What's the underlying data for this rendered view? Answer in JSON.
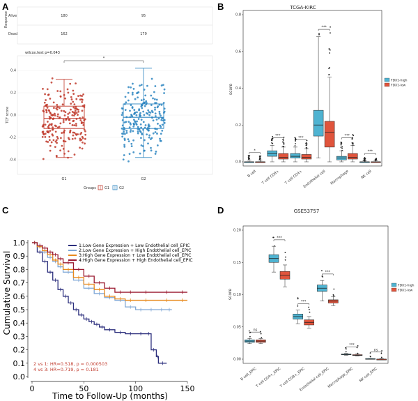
{
  "colors": {
    "g1": "#c0392b",
    "g2": "#2e86c1",
    "high": "#4fb3d1",
    "low": "#e0543c",
    "c1": "#2c2f7d",
    "c2": "#7fa7d6",
    "c3": "#e8891c",
    "c4": "#9b1b30"
  },
  "panels": {
    "A": "A",
    "B": "B",
    "C": "C",
    "D": "D"
  },
  "chart_data": [
    {
      "id": "A",
      "type": "box",
      "table": {
        "row_labels": [
          "Alive",
          "Dead"
        ],
        "col_values": [
          [
            "180",
            "95"
          ],
          [
            "162",
            "179"
          ]
        ],
        "y_title": "Response"
      },
      "stat": "wilcox.test p=0.043",
      "sig": "*",
      "ylabel": "TCF score",
      "y_ticks": [
        "0.4",
        "0.2",
        "0.0",
        "-0.2",
        "-0.4"
      ],
      "categories": [
        "G1",
        "G2"
      ],
      "legend_title": "Groups",
      "legend_labels": [
        "G1",
        "G2"
      ],
      "boxes": [
        {
          "name": "G1",
          "q1": -0.12,
          "median": -0.03,
          "q3": 0.08,
          "whisker_low": -0.38,
          "whisker_high": 0.32
        },
        {
          "name": "G2",
          "q1": -0.12,
          "median": -0.02,
          "q3": 0.1,
          "whisker_low": -0.38,
          "whisker_high": 0.42
        }
      ],
      "ylim": [
        -0.5,
        0.5
      ]
    },
    {
      "id": "B",
      "type": "box",
      "title": "TCGA-KIRC",
      "ylabel": "score",
      "ylim": [
        0,
        0.8
      ],
      "y_ticks": [
        "0.0",
        "0.2",
        "0.4",
        "0.6",
        "0.8"
      ],
      "categories": [
        "B cell",
        "T cell CD8+",
        "T cell CD4+",
        "Endothelial cell",
        "Macrophage",
        "NK cell"
      ],
      "legend": [
        "FDX1-high",
        "FDX1-low"
      ],
      "sig": [
        "*",
        "***",
        "***",
        "***",
        "***",
        "***"
      ],
      "series": [
        {
          "name": "FDX1-high",
          "boxes": [
            {
              "q1": 0.0,
              "median": 0.0,
              "q3": 0.0,
              "lo": 0.0,
              "hi": 0.01
            },
            {
              "q1": 0.03,
              "median": 0.045,
              "q3": 0.06,
              "lo": 0.0,
              "hi": 0.09
            },
            {
              "q1": 0.02,
              "median": 0.03,
              "q3": 0.045,
              "lo": 0.0,
              "hi": 0.08
            },
            {
              "q1": 0.14,
              "median": 0.2,
              "q3": 0.28,
              "lo": 0.02,
              "hi": 0.68
            },
            {
              "q1": 0.01,
              "median": 0.02,
              "q3": 0.03,
              "lo": 0.0,
              "hi": 0.06
            },
            {
              "q1": 0.0,
              "median": 0.0,
              "q3": 0.0,
              "lo": 0.0,
              "hi": 0.005
            }
          ]
        },
        {
          "name": "FDX1-low",
          "boxes": [
            {
              "q1": 0.0,
              "median": 0.0,
              "q3": 0.0,
              "lo": 0.0,
              "hi": 0.01
            },
            {
              "q1": 0.015,
              "median": 0.025,
              "q3": 0.045,
              "lo": 0.0,
              "hi": 0.08
            },
            {
              "q1": 0.015,
              "median": 0.025,
              "q3": 0.04,
              "lo": 0.0,
              "hi": 0.07
            },
            {
              "q1": 0.08,
              "median": 0.16,
              "q3": 0.22,
              "lo": 0.0,
              "hi": 0.46
            },
            {
              "q1": 0.015,
              "median": 0.025,
              "q3": 0.045,
              "lo": 0.0,
              "hi": 0.09
            },
            {
              "q1": 0.0,
              "median": 0.0,
              "q3": 0.0,
              "lo": 0.0,
              "hi": 0.005
            }
          ]
        }
      ]
    },
    {
      "id": "C",
      "type": "line",
      "xlabel": "Time to Follow-Up (months)",
      "ylabel": "Cumulative Survival",
      "xlim": [
        0,
        150
      ],
      "ylim": [
        0,
        1.0
      ],
      "x_ticks": [
        0,
        50,
        100,
        150
      ],
      "y_ticks": [
        "0.0",
        "0.1",
        "0.2",
        "0.3",
        "0.4",
        "0.5",
        "0.6",
        "0.7",
        "0.8",
        "0.9",
        "1.0"
      ],
      "legend": [
        "1:Low Gene Expression + Low Endothelial cell_EPIC",
        "2:Low Gene Expression + High Endothelial cell_EPIC",
        "3:High Gene Expression + Low Endothelial cell_EPIC",
        "4:High Gene Expression + High Endothelial cell_EPIC"
      ],
      "stats": [
        "2 vs 1: HR=0.518, p = 0.000503",
        "4 vs 3: HR=0.719, p = 0.181"
      ],
      "series": [
        {
          "x": [
            0,
            5,
            10,
            15,
            20,
            25,
            30,
            35,
            40,
            45,
            50,
            55,
            60,
            65,
            70,
            80,
            90,
            100,
            110,
            115,
            120,
            122,
            130
          ],
          "y": [
            1.0,
            0.93,
            0.86,
            0.78,
            0.72,
            0.65,
            0.6,
            0.55,
            0.5,
            0.46,
            0.43,
            0.41,
            0.39,
            0.37,
            0.35,
            0.33,
            0.32,
            0.32,
            0.32,
            0.2,
            0.15,
            0.1,
            0.1
          ]
        },
        {
          "x": [
            0,
            5,
            10,
            15,
            20,
            25,
            30,
            40,
            50,
            60,
            70,
            80,
            90,
            100,
            110,
            120,
            130,
            135
          ],
          "y": [
            1.0,
            0.97,
            0.93,
            0.89,
            0.86,
            0.82,
            0.78,
            0.72,
            0.66,
            0.62,
            0.59,
            0.57,
            0.52,
            0.5,
            0.5,
            0.5,
            0.5,
            0.5
          ]
        },
        {
          "x": [
            0,
            5,
            10,
            15,
            20,
            25,
            30,
            40,
            50,
            60,
            70,
            80,
            90,
            100,
            120,
            140,
            150
          ],
          "y": [
            1.0,
            0.97,
            0.94,
            0.91,
            0.87,
            0.84,
            0.8,
            0.74,
            0.69,
            0.65,
            0.6,
            0.58,
            0.57,
            0.57,
            0.57,
            0.57,
            0.57
          ]
        },
        {
          "x": [
            0,
            5,
            10,
            15,
            20,
            25,
            30,
            40,
            50,
            60,
            70,
            80,
            90,
            100,
            120,
            140,
            150
          ],
          "y": [
            1.0,
            0.98,
            0.96,
            0.93,
            0.91,
            0.88,
            0.85,
            0.8,
            0.75,
            0.7,
            0.66,
            0.63,
            0.63,
            0.63,
            0.63,
            0.63,
            0.63
          ]
        }
      ]
    },
    {
      "id": "D",
      "type": "box",
      "title": "GSE53757",
      "ylabel": "score",
      "ylim": [
        0,
        0.2
      ],
      "y_ticks": [
        "0.00",
        "0.05",
        "0.10",
        "0.15",
        "0.20"
      ],
      "categories": [
        "B cell_EPIC",
        "T cell CD4+_EPIC",
        "T cell CD8+_EPIC",
        "Endothelial cell_EPIC",
        "Macrophage_EPIC",
        "NK cell_EPIC"
      ],
      "legend": [
        "FDX1-high",
        "FDX1-low"
      ],
      "sig": [
        "ns",
        "***",
        "***",
        "***",
        "***",
        "ns"
      ],
      "series": [
        {
          "name": "FDX1-high",
          "boxes": [
            {
              "q1": 0.026,
              "median": 0.028,
              "q3": 0.03,
              "lo": 0.024,
              "hi": 0.032
            },
            {
              "q1": 0.15,
              "median": 0.156,
              "q3": 0.162,
              "lo": 0.135,
              "hi": 0.175
            },
            {
              "q1": 0.062,
              "median": 0.066,
              "q3": 0.07,
              "lo": 0.055,
              "hi": 0.076
            },
            {
              "q1": 0.105,
              "median": 0.11,
              "q3": 0.115,
              "lo": 0.09,
              "hi": 0.122
            },
            {
              "q1": 0.007,
              "median": 0.007,
              "q3": 0.008,
              "lo": 0.006,
              "hi": 0.009
            },
            {
              "q1": 0.0,
              "median": 0.0,
              "q3": 0.001,
              "lo": 0.0,
              "hi": 0.001
            }
          ]
        },
        {
          "name": "FDX1-low",
          "boxes": [
            {
              "q1": 0.026,
              "median": 0.028,
              "q3": 0.03,
              "lo": 0.024,
              "hi": 0.032
            },
            {
              "q1": 0.124,
              "median": 0.13,
              "q3": 0.136,
              "lo": 0.112,
              "hi": 0.146
            },
            {
              "q1": 0.053,
              "median": 0.057,
              "q3": 0.061,
              "lo": 0.048,
              "hi": 0.066
            },
            {
              "q1": 0.087,
              "median": 0.09,
              "q3": 0.092,
              "lo": 0.083,
              "hi": 0.097
            },
            {
              "q1": 0.006,
              "median": 0.006,
              "q3": 0.007,
              "lo": 0.005,
              "hi": 0.008
            },
            {
              "q1": 0.0,
              "median": 0.0,
              "q3": 0.0,
              "lo": 0.0,
              "hi": 0.001
            }
          ]
        }
      ]
    }
  ]
}
